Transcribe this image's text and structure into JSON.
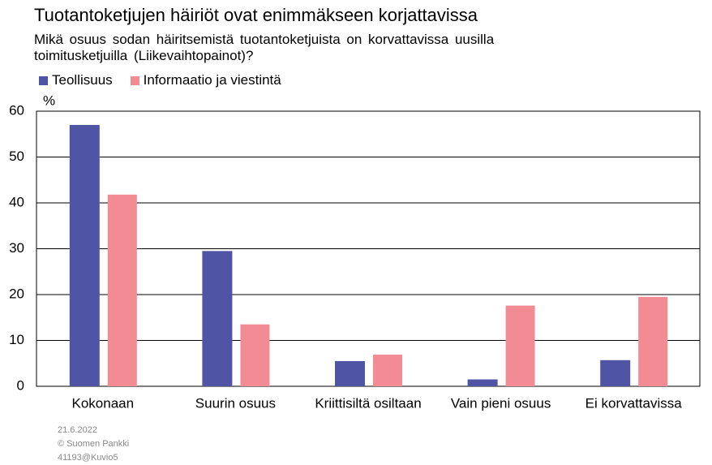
{
  "chart_data": {
    "type": "bar",
    "title": "Tuotantoketjujen häiriöt ovat enimmäkseen korjattavissa",
    "subtitle": "Mikä osuus sodan häiritsemistä tuotantoketjuista on korvattavissa uusilla toimitusketjuilla (Liikevaihtopainot)?",
    "y_unit": "%",
    "categories": [
      "Kokonaan",
      "Suurin osuus",
      "Kriittisiltä osiltaan",
      "Vain pieni osuus",
      "Ei korvattavissa"
    ],
    "series": [
      {
        "name": "Teollisuus",
        "color": "#4f54a5",
        "values": [
          57,
          29.5,
          5.5,
          1.5,
          5.7
        ]
      },
      {
        "name": "Informaatio ja viestintä",
        "color": "#f28b93",
        "values": [
          41.8,
          13.5,
          6.9,
          17.6,
          19.5
        ]
      }
    ],
    "ylim": [
      0,
      60
    ],
    "yticks": [
      0,
      10,
      20,
      30,
      40,
      50,
      60
    ],
    "grid": true,
    "footer": [
      "21.6.2022",
      "© Suomen Pankki",
      "41193@Kuvio5"
    ]
  }
}
